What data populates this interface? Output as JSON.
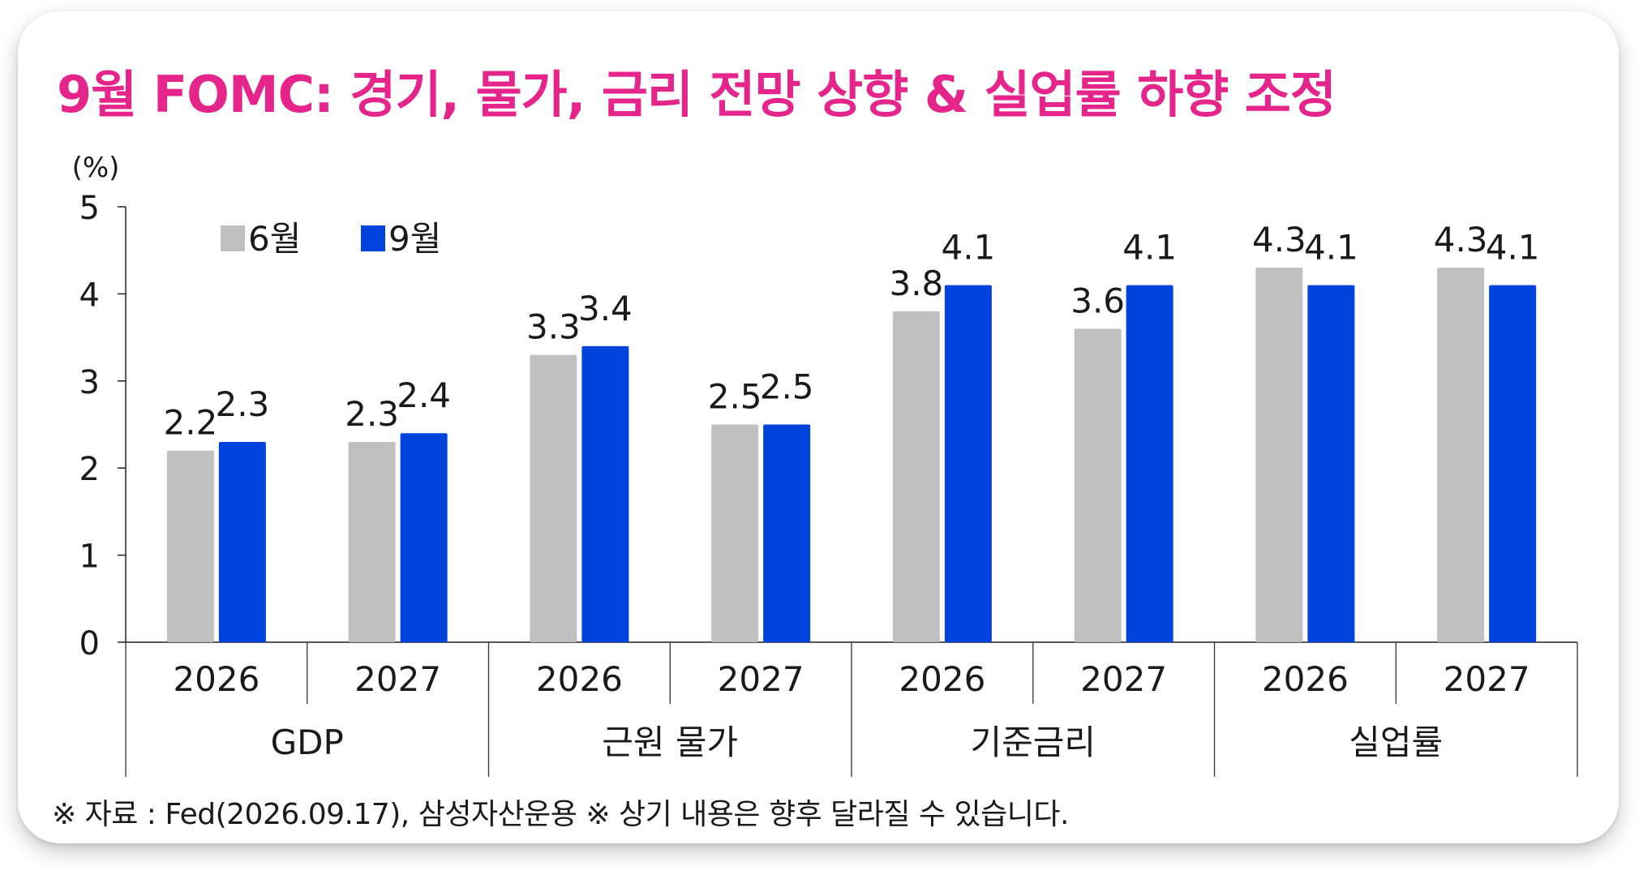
{
  "title": "9월 FOMC: 경기, 물가, 금리 전망 상향 & 실업률 하향 조정",
  "note": "※ 자료 : Fed(2026.09.17), 삼성자산운용 ※ 상기 내용은 향후 달라질 수 있습니다.",
  "chart_data": {
    "type": "bar",
    "unit_label": "(%)",
    "ylim": [
      0,
      5
    ],
    "yticks": [
      "0",
      "1",
      "2",
      "3",
      "4",
      "5"
    ],
    "groups": [
      "GDP",
      "근원 물가",
      "기준금리",
      "실업률"
    ],
    "categories": [
      "2026",
      "2027",
      "2026",
      "2027",
      "2026",
      "2027",
      "2026",
      "2027"
    ],
    "series": [
      {
        "name": "6월",
        "color": "#c0c0c0",
        "values": [
          2.2,
          2.3,
          3.3,
          2.5,
          3.8,
          3.6,
          4.3,
          4.3
        ]
      },
      {
        "name": "9월",
        "color": "#0044dd",
        "values": [
          2.3,
          2.4,
          3.4,
          2.5,
          4.1,
          4.1,
          4.1,
          4.1
        ]
      }
    ],
    "legend_position": "top-left",
    "grid": false
  }
}
